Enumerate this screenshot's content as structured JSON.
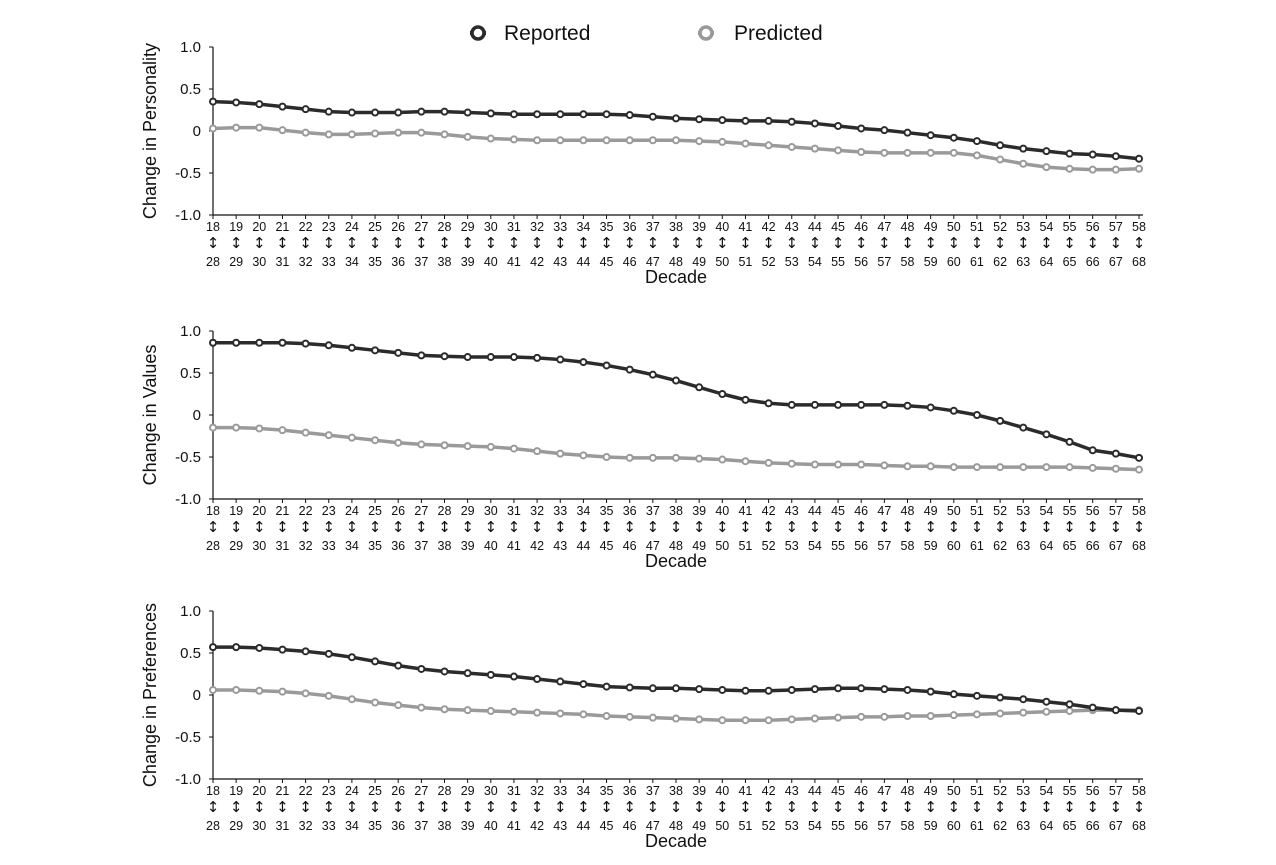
{
  "legend": {
    "placement": "top-center",
    "items": [
      {
        "name": "Reported",
        "color": "#2b2b2b"
      },
      {
        "name": "Predicted",
        "color": "#9a9a9a"
      }
    ]
  },
  "chart_data": [
    {
      "type": "line",
      "ylabel": "Change in Personality",
      "xlabel": "Decade",
      "ylim": [
        -1.0,
        1.0
      ],
      "yticks": [
        "1.0",
        "0.5",
        "0",
        "-0.5",
        "-1.0"
      ],
      "x_start": [
        18,
        19,
        20,
        21,
        22,
        23,
        24,
        25,
        26,
        27,
        28,
        29,
        30,
        31,
        32,
        33,
        34,
        35,
        36,
        37,
        38,
        39,
        40,
        41,
        42,
        43,
        44,
        45,
        46,
        47,
        48,
        49,
        50,
        51,
        52,
        53,
        54,
        55,
        56,
        57,
        58
      ],
      "x_end": [
        28,
        29,
        30,
        31,
        32,
        33,
        34,
        35,
        36,
        37,
        38,
        39,
        40,
        41,
        42,
        43,
        44,
        45,
        46,
        47,
        48,
        49,
        50,
        51,
        52,
        53,
        54,
        55,
        56,
        57,
        58,
        59,
        60,
        61,
        62,
        63,
        64,
        65,
        66,
        67,
        68
      ],
      "series": [
        {
          "name": "Reported",
          "values": [
            0.35,
            0.34,
            0.32,
            0.29,
            0.26,
            0.23,
            0.22,
            0.22,
            0.22,
            0.23,
            0.23,
            0.22,
            0.21,
            0.2,
            0.2,
            0.2,
            0.2,
            0.2,
            0.19,
            0.17,
            0.15,
            0.14,
            0.13,
            0.12,
            0.12,
            0.11,
            0.09,
            0.06,
            0.03,
            0.01,
            -0.02,
            -0.05,
            -0.08,
            -0.12,
            -0.17,
            -0.21,
            -0.24,
            -0.27,
            -0.28,
            -0.3,
            -0.33
          ]
        },
        {
          "name": "Predicted",
          "values": [
            0.03,
            0.04,
            0.04,
            0.01,
            -0.02,
            -0.04,
            -0.04,
            -0.03,
            -0.02,
            -0.02,
            -0.04,
            -0.07,
            -0.09,
            -0.1,
            -0.11,
            -0.11,
            -0.11,
            -0.11,
            -0.11,
            -0.11,
            -0.11,
            -0.12,
            -0.13,
            -0.15,
            -0.17,
            -0.19,
            -0.21,
            -0.23,
            -0.25,
            -0.26,
            -0.26,
            -0.26,
            -0.26,
            -0.29,
            -0.34,
            -0.39,
            -0.43,
            -0.45,
            -0.46,
            -0.46,
            -0.45
          ]
        }
      ]
    },
    {
      "type": "line",
      "ylabel": "Change in Values",
      "xlabel": "Decade",
      "ylim": [
        -1.0,
        1.0
      ],
      "yticks": [
        "1.0",
        "0.5",
        "0",
        "-0.5",
        "-1.0"
      ],
      "x_start": [
        18,
        19,
        20,
        21,
        22,
        23,
        24,
        25,
        26,
        27,
        28,
        29,
        30,
        31,
        32,
        33,
        34,
        35,
        36,
        37,
        38,
        39,
        40,
        41,
        42,
        43,
        44,
        45,
        46,
        47,
        48,
        49,
        50,
        51,
        52,
        53,
        54,
        55,
        56,
        57,
        58
      ],
      "x_end": [
        28,
        29,
        30,
        31,
        32,
        33,
        34,
        35,
        36,
        37,
        38,
        39,
        40,
        41,
        42,
        43,
        44,
        45,
        46,
        47,
        48,
        49,
        50,
        51,
        52,
        53,
        54,
        55,
        56,
        57,
        58,
        59,
        60,
        61,
        62,
        63,
        64,
        65,
        66,
        67,
        68
      ],
      "series": [
        {
          "name": "Reported",
          "values": [
            0.86,
            0.86,
            0.86,
            0.86,
            0.85,
            0.83,
            0.8,
            0.77,
            0.74,
            0.71,
            0.7,
            0.69,
            0.69,
            0.69,
            0.68,
            0.66,
            0.63,
            0.59,
            0.54,
            0.48,
            0.41,
            0.33,
            0.25,
            0.18,
            0.14,
            0.12,
            0.12,
            0.12,
            0.12,
            0.12,
            0.11,
            0.09,
            0.05,
            0.0,
            -0.07,
            -0.15,
            -0.23,
            -0.32,
            -0.42,
            -0.46,
            -0.51
          ]
        },
        {
          "name": "Predicted",
          "values": [
            -0.15,
            -0.15,
            -0.16,
            -0.18,
            -0.21,
            -0.24,
            -0.27,
            -0.3,
            -0.33,
            -0.35,
            -0.36,
            -0.37,
            -0.38,
            -0.4,
            -0.43,
            -0.46,
            -0.48,
            -0.5,
            -0.51,
            -0.51,
            -0.51,
            -0.52,
            -0.53,
            -0.55,
            -0.57,
            -0.58,
            -0.59,
            -0.59,
            -0.59,
            -0.6,
            -0.61,
            -0.61,
            -0.62,
            -0.62,
            -0.62,
            -0.62,
            -0.62,
            -0.62,
            -0.63,
            -0.64,
            -0.65
          ]
        }
      ]
    },
    {
      "type": "line",
      "ylabel": "Change in Preferences",
      "xlabel": "Decade",
      "ylim": [
        -1.0,
        1.0
      ],
      "yticks": [
        "1.0",
        "0.5",
        "0",
        "-0.5",
        "-1.0"
      ],
      "x_start": [
        18,
        19,
        20,
        21,
        22,
        23,
        24,
        25,
        26,
        27,
        28,
        29,
        30,
        31,
        32,
        33,
        34,
        35,
        36,
        37,
        38,
        39,
        40,
        41,
        42,
        43,
        44,
        45,
        46,
        47,
        48,
        49,
        50,
        51,
        52,
        53,
        54,
        55,
        56,
        57,
        58
      ],
      "x_end": [
        28,
        29,
        30,
        31,
        32,
        33,
        34,
        35,
        36,
        37,
        38,
        39,
        40,
        41,
        42,
        43,
        44,
        45,
        46,
        47,
        48,
        49,
        50,
        51,
        52,
        53,
        54,
        55,
        56,
        57,
        58,
        59,
        60,
        61,
        62,
        63,
        64,
        65,
        66,
        67,
        68
      ],
      "series": [
        {
          "name": "Reported",
          "values": [
            0.57,
            0.57,
            0.56,
            0.54,
            0.52,
            0.49,
            0.45,
            0.4,
            0.35,
            0.31,
            0.28,
            0.26,
            0.24,
            0.22,
            0.19,
            0.16,
            0.13,
            0.1,
            0.09,
            0.08,
            0.08,
            0.07,
            0.06,
            0.05,
            0.05,
            0.06,
            0.07,
            0.08,
            0.08,
            0.07,
            0.06,
            0.04,
            0.01,
            -0.01,
            -0.03,
            -0.05,
            -0.08,
            -0.11,
            -0.15,
            -0.18,
            -0.19
          ]
        },
        {
          "name": "Predicted",
          "values": [
            0.06,
            0.06,
            0.05,
            0.04,
            0.02,
            -0.01,
            -0.05,
            -0.09,
            -0.12,
            -0.15,
            -0.17,
            -0.18,
            -0.19,
            -0.2,
            -0.21,
            -0.22,
            -0.23,
            -0.25,
            -0.26,
            -0.27,
            -0.28,
            -0.29,
            -0.3,
            -0.3,
            -0.3,
            -0.29,
            -0.28,
            -0.27,
            -0.26,
            -0.26,
            -0.25,
            -0.25,
            -0.24,
            -0.23,
            -0.22,
            -0.21,
            -0.2,
            -0.19,
            -0.18,
            -0.18,
            -0.18
          ]
        }
      ]
    }
  ]
}
